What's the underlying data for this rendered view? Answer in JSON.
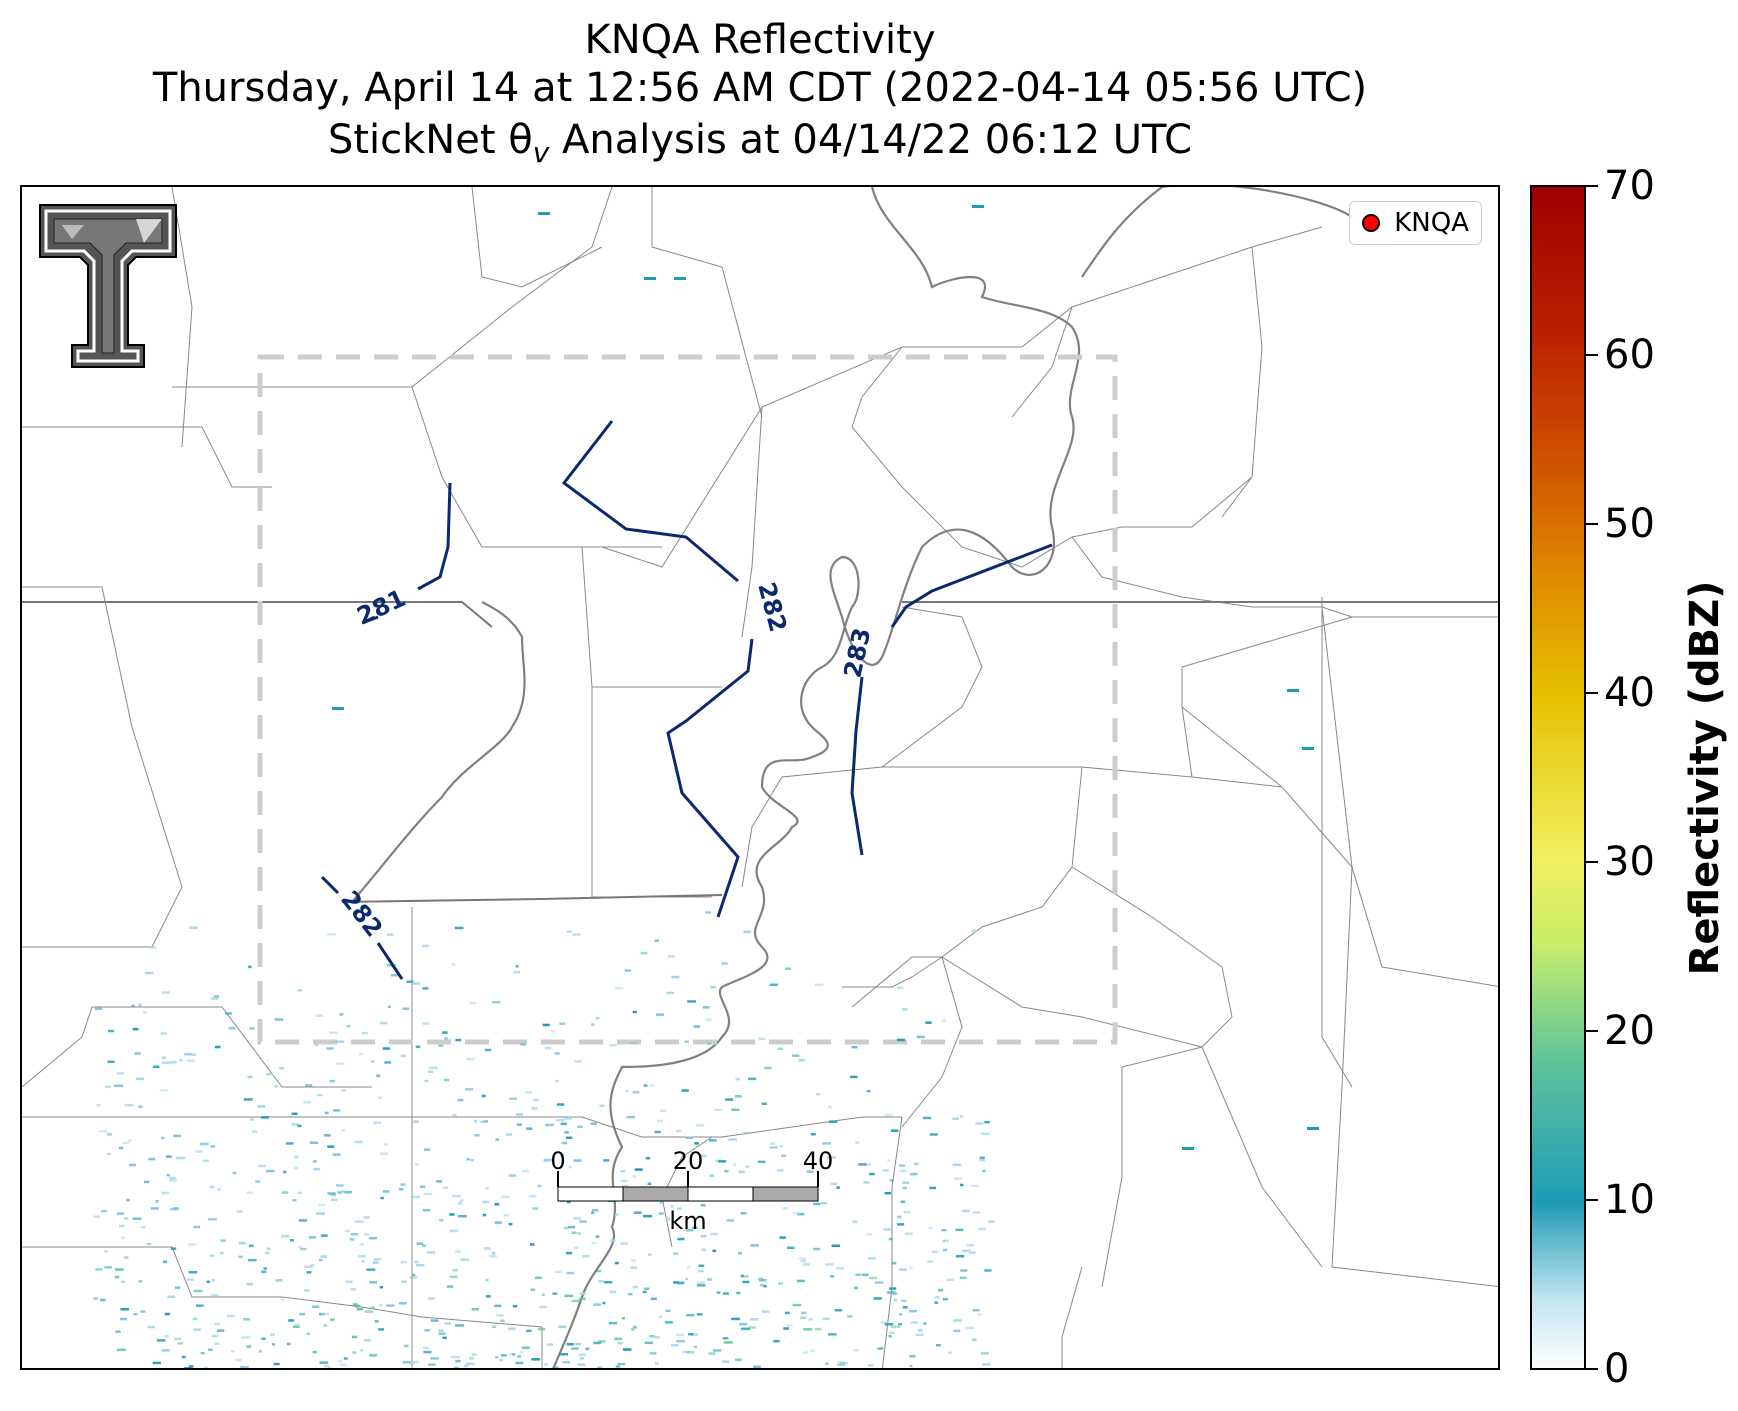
{
  "title": {
    "line1": "KNQA Reflectivity",
    "line2": "Thursday, April 14 at 12:56 AM CDT (2022-04-14 05:56 UTC)",
    "line3": "StickNet θv Analysis at 04/14/22 06:12 UTC"
  },
  "legend": {
    "label": "KNQA",
    "marker_color": "#ff0000"
  },
  "contours": {
    "color": "#0b2a6e",
    "labels": [
      "281",
      "282",
      "283",
      "282"
    ]
  },
  "scale_bar": {
    "ticks": [
      "0",
      "20",
      "40"
    ],
    "unit": "km"
  },
  "colorbar": {
    "title": "Reflectivity (dBZ)",
    "ticks": [
      "0",
      "10",
      "20",
      "30",
      "40",
      "50",
      "60",
      "70"
    ],
    "range": [
      0,
      70
    ]
  },
  "logo": {
    "name": "texas-tech-double-t-logo"
  },
  "colors": {
    "county_lines": "#888888",
    "state_lines": "#777777",
    "river": "#808080",
    "analysis_domain": "#cccccc",
    "reflectivity_low": "#a8d8ea",
    "reflectivity_mid": "#1f9bb5"
  }
}
